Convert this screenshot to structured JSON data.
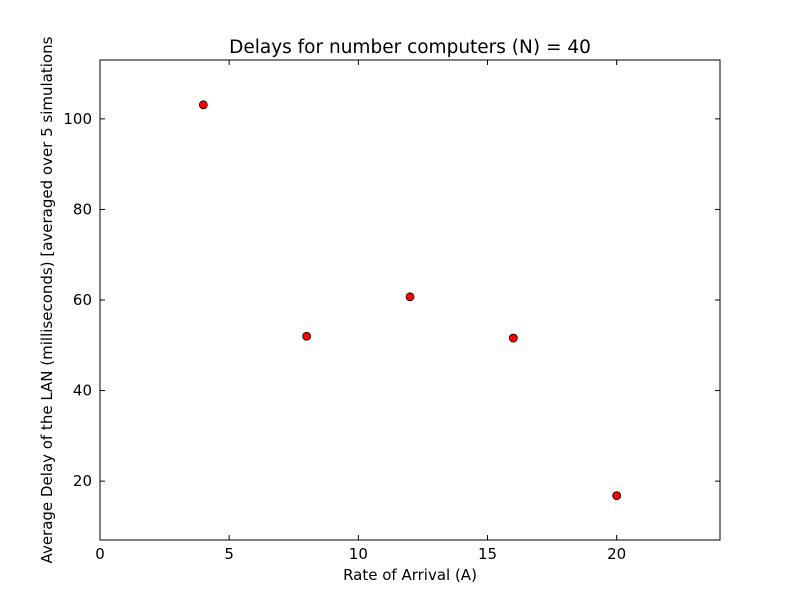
{
  "chart_data": {
    "type": "scatter",
    "title": "Delays for number computers (N) = 40",
    "xlabel": "Rate of Arrival (A)",
    "ylabel": "Average Delay of the LAN (milliseconds) [averaged over 5 simulations",
    "xlim": [
      0,
      24
    ],
    "ylim": [
      7,
      113
    ],
    "xticks": [
      0,
      5,
      10,
      15,
      20
    ],
    "yticks": [
      20,
      40,
      60,
      80,
      100
    ],
    "grid": false,
    "marker_color": "#ff0000",
    "marker_edge_color": "#000000",
    "series": [
      {
        "x": [
          4,
          8,
          12,
          16,
          20
        ],
        "y": [
          103.1,
          52.0,
          60.7,
          51.6,
          16.8
        ]
      }
    ]
  }
}
